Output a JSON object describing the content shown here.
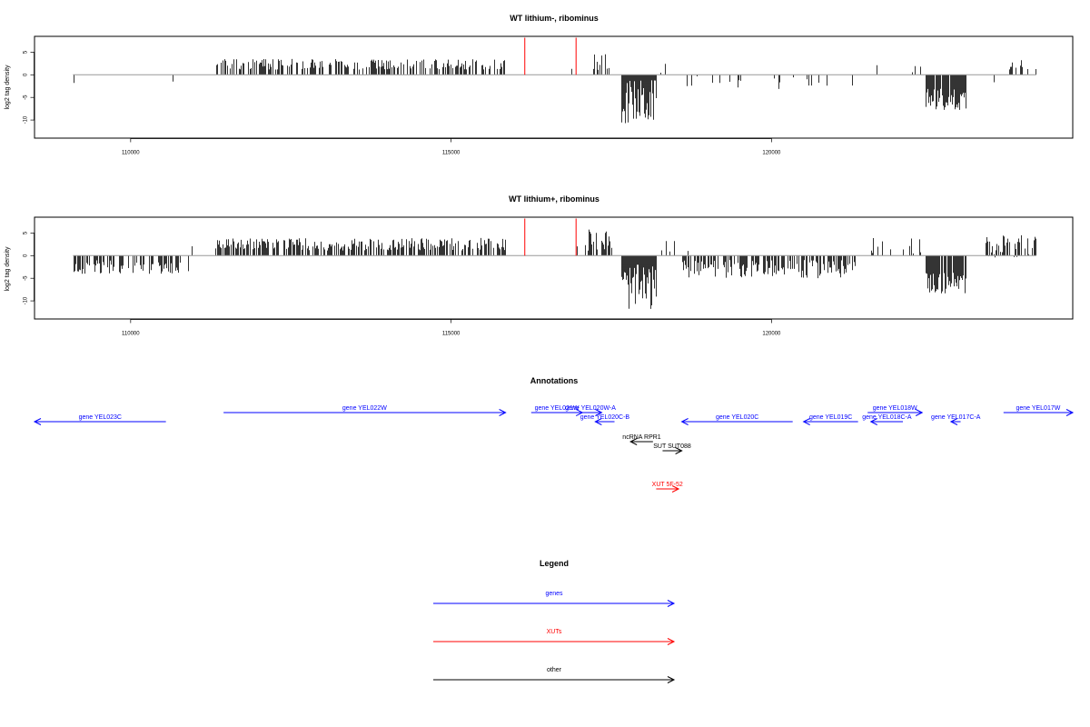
{
  "colors": {
    "gene": "#0000ff",
    "xut": "#ff0000",
    "other": "#000000",
    "baseline": "#999999",
    "highlight": "#ff0000"
  },
  "chart_data": [
    {
      "type": "bar",
      "title": "WT lithium-, ribominus",
      "ylabel": "log2 tag density",
      "xlim": [
        108500,
        124700
      ],
      "ylim": [
        -14,
        8.5
      ],
      "xticks": [
        110000,
        115000,
        120000
      ],
      "xtick_labels": [
        "110000",
        "115000",
        "120000"
      ],
      "yticks": [
        5,
        0,
        -5,
        -10
      ],
      "ytick_labels": [
        "5",
        "0",
        "-5",
        "-10"
      ],
      "highlight_lines_x": [
        116150,
        116950
      ],
      "segments": [
        {
          "x": [
            109100,
            111300
          ],
          "base": 0,
          "amp": 3.0,
          "dens": 0.008
        },
        {
          "x": [
            111330,
            115850
          ],
          "base": 2.3,
          "amp": 1.2,
          "dens": 0.5
        },
        {
          "x": [
            116350,
            117000
          ],
          "base": 0.8,
          "amp": 1.5,
          "dens": 0.02
        },
        {
          "x": [
            117180,
            117480
          ],
          "base": 2.8,
          "amp": 2.0,
          "dens": 0.55
        },
        {
          "x": [
            117650,
            118200
          ],
          "base": -6.0,
          "amp": 5.0,
          "dens": 1.0
        },
        {
          "x": [
            118250,
            118400
          ],
          "base": 1.5,
          "amp": 1.5,
          "dens": 0.1
        },
        {
          "x": [
            118600,
            121300
          ],
          "base": -1.8,
          "amp": 1.5,
          "dens": 0.1
        },
        {
          "x": [
            121500,
            122400
          ],
          "base": 1.7,
          "amp": 1.4,
          "dens": 0.05
        },
        {
          "x": [
            122400,
            123040
          ],
          "base": -5.5,
          "amp": 2.5,
          "dens": 0.9
        },
        {
          "x": [
            123300,
            123700
          ],
          "base": -1.3,
          "amp": 1.3,
          "dens": 0.03
        },
        {
          "x": [
            123700,
            124130
          ],
          "base": 2.0,
          "amp": 1.3,
          "dens": 0.15
        }
      ]
    },
    {
      "type": "bar",
      "title": "WT lithium+, ribominus",
      "ylabel": "log2 tag density",
      "xlim": [
        108500,
        124700
      ],
      "ylim": [
        -14,
        8.5
      ],
      "xticks": [
        110000,
        115000,
        120000
      ],
      "xtick_labels": [
        "110000",
        "115000",
        "120000"
      ],
      "yticks": [
        5,
        0,
        -5,
        -10
      ],
      "ytick_labels": [
        "5",
        "0",
        "-5",
        "-10"
      ],
      "highlight_lines_x": [
        116150,
        116950
      ],
      "segments": [
        {
          "x": [
            109100,
            110900
          ],
          "base": -2.5,
          "amp": 1.5,
          "dens": 0.6
        },
        {
          "x": [
            110900,
            111100
          ],
          "base": 1.5,
          "amp": 1.5,
          "dens": 0.05
        },
        {
          "x": [
            111300,
            115850
          ],
          "base": 2.5,
          "amp": 1.4,
          "dens": 0.6
        },
        {
          "x": [
            116300,
            117000
          ],
          "base": 1.0,
          "amp": 1.5,
          "dens": 0.02
        },
        {
          "x": [
            117050,
            117500
          ],
          "base": 3.5,
          "amp": 2.5,
          "dens": 0.6
        },
        {
          "x": [
            117650,
            118200
          ],
          "base": -7.0,
          "amp": 5.0,
          "dens": 1.0
        },
        {
          "x": [
            118250,
            118700
          ],
          "base": 1.8,
          "amp": 1.5,
          "dens": 0.12
        },
        {
          "x": [
            118600,
            121300
          ],
          "base": -3.0,
          "amp": 2.0,
          "dens": 0.6
        },
        {
          "x": [
            121500,
            122400
          ],
          "base": 2.0,
          "amp": 2.0,
          "dens": 0.12
        },
        {
          "x": [
            122400,
            123050
          ],
          "base": -6.0,
          "amp": 2.5,
          "dens": 0.9
        },
        {
          "x": [
            123300,
            124130
          ],
          "base": 2.0,
          "amp": 2.5,
          "dens": 0.4
        }
      ]
    }
  ],
  "annotations": {
    "title": "Annotations",
    "features": [
      {
        "label": "gene YEL023C",
        "start": 108500,
        "end": 110550,
        "dir": "left",
        "type": "gene",
        "row": 2
      },
      {
        "label": "gene YEL022W",
        "start": 111450,
        "end": 115850,
        "dir": "right",
        "type": "gene",
        "row": 1
      },
      {
        "label": "gene YEL021W",
        "start": 116250,
        "end": 117050,
        "dir": "right",
        "type": "gene",
        "row": 1
      },
      {
        "label": "gene YEL020W-A",
        "start": 117000,
        "end": 117350,
        "dir": "right",
        "type": "gene",
        "row": 1
      },
      {
        "label": "gene YEL020C-B",
        "start": 117250,
        "end": 117550,
        "dir": "left",
        "type": "gene",
        "row": 2
      },
      {
        "label": "gene YEL020C",
        "start": 118600,
        "end": 120330,
        "dir": "left",
        "type": "gene",
        "row": 2
      },
      {
        "label": "gene YEL019C",
        "start": 120500,
        "end": 121350,
        "dir": "left",
        "type": "gene",
        "row": 2
      },
      {
        "label": "gene YEL018C-A",
        "start": 121550,
        "end": 122050,
        "dir": "left",
        "type": "gene",
        "row": 2
      },
      {
        "label": "gene YEL018W",
        "start": 121500,
        "end": 122350,
        "dir": "right",
        "type": "gene",
        "row": 1
      },
      {
        "label": "gene YEL017C-A",
        "start": 122800,
        "end": 122950,
        "dir": "left",
        "type": "gene",
        "row": 2
      },
      {
        "label": "gene YEL017W",
        "start": 123620,
        "end": 124700,
        "dir": "right",
        "type": "gene",
        "row": 1
      },
      {
        "label": "ncRNA RPR1",
        "start": 117800,
        "end": 118150,
        "dir": "left",
        "type": "other",
        "row": 3
      },
      {
        "label": "SUT SUT088",
        "start": 118300,
        "end": 118600,
        "dir": "right",
        "type": "other",
        "row": 4
      },
      {
        "label": "XUT 5F-52",
        "start": 118200,
        "end": 118550,
        "dir": "right",
        "type": "xut",
        "row": 5
      }
    ]
  },
  "legend": {
    "title": "Legend",
    "items": [
      {
        "label": "genes",
        "type": "gene"
      },
      {
        "label": "XUTs",
        "type": "xut"
      },
      {
        "label": "other",
        "type": "other"
      }
    ]
  }
}
